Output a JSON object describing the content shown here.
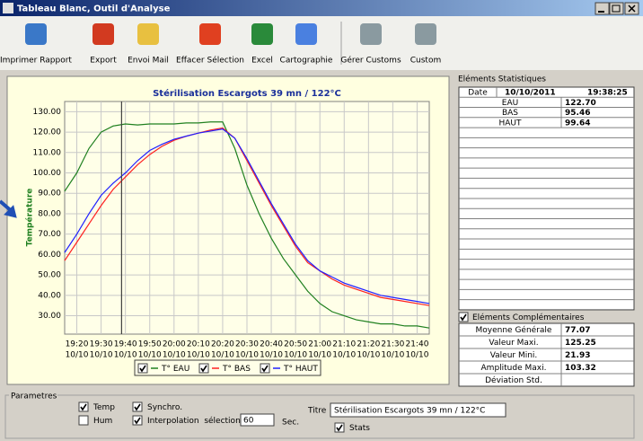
{
  "window": {
    "title": "Tableau Blanc, Outil d'Analyse"
  },
  "toolbar": [
    "Imprimer Rapport",
    "Export",
    "Envoi Mail",
    "Effacer Sélection",
    "Excel",
    "Cartographie",
    "Gérer Customs",
    "Custom"
  ],
  "chart_data": {
    "type": "line",
    "title": "Stérilisation Escargots 39 mn / 122°C",
    "y_label": "Température",
    "x": [
      "19:15",
      "19:20",
      "19:25",
      "19:30",
      "19:35",
      "19:40",
      "19:45",
      "19:50",
      "19:55",
      "20:00",
      "20:05",
      "20:10",
      "20:15",
      "20:20",
      "20:25",
      "20:30",
      "20:35",
      "20:40",
      "20:45",
      "20:50",
      "20:55",
      "21:00",
      "21:05",
      "21:10",
      "21:15",
      "21:20",
      "21:25",
      "21:30",
      "21:35",
      "21:40",
      "21:45"
    ],
    "xlim": [
      "19:15",
      "21:45"
    ],
    "xticks": [
      "19:20",
      "19:30",
      "19:40",
      "19:50",
      "20:00",
      "20:10",
      "20:20",
      "20:30",
      "20:40",
      "20:50",
      "21:00",
      "21:10",
      "21:20",
      "21:30",
      "21:40"
    ],
    "xtick_sublabel": "10/10",
    "ylim": [
      21,
      135
    ],
    "yticks": [
      {
        "value": 30,
        "label": "30.00"
      },
      {
        "value": 40,
        "label": "40.00"
      },
      {
        "value": 50,
        "label": "50.00"
      },
      {
        "value": 60,
        "label": "60.00"
      },
      {
        "value": 70,
        "label": "70.00"
      },
      {
        "value": 80,
        "label": "80.00"
      },
      {
        "value": 90,
        "label": "90.00"
      },
      {
        "value": 100,
        "label": "100.00"
      },
      {
        "value": 110,
        "label": "110.00"
      },
      {
        "value": 120,
        "label": "120.00"
      },
      {
        "value": 130,
        "label": "130.00"
      }
    ],
    "grid": true,
    "series": [
      {
        "name": "T° EAU",
        "color": "#208020",
        "checked": true,
        "values": [
          91,
          100,
          112,
          120,
          123,
          124,
          123.5,
          124,
          124,
          124,
          124.5,
          124.5,
          125,
          125,
          112,
          94,
          80,
          68,
          58,
          50,
          42,
          36,
          32,
          30,
          28,
          27,
          26,
          26,
          25,
          25,
          24
        ]
      },
      {
        "name": "T° BAS",
        "color": "#ff2020",
        "checked": true,
        "values": [
          57,
          66,
          75,
          84,
          92,
          98,
          104,
          109,
          113,
          116,
          118,
          119.5,
          121,
          122,
          117,
          106,
          95,
          84,
          74,
          64,
          56,
          52,
          48,
          45,
          43,
          41,
          39,
          38,
          37,
          36,
          35
        ]
      },
      {
        "name": "T° HAUT",
        "color": "#2020ff",
        "checked": true,
        "values": [
          61,
          70,
          80,
          89,
          95,
          100,
          106,
          111,
          114,
          116.5,
          118,
          119.5,
          120.5,
          121.5,
          117,
          107,
          96,
          85,
          75,
          65,
          57,
          52,
          49,
          46,
          44,
          42,
          40,
          39,
          38,
          37,
          36
        ]
      }
    ]
  },
  "stats": {
    "title": "Eléments Statistiques",
    "date_label": "Date",
    "date": "10/10/2011",
    "time": "19:38:25",
    "rows": [
      [
        "EAU",
        "122.70"
      ],
      [
        "BAS",
        "95.46"
      ],
      [
        "HAUT",
        "99.64"
      ]
    ],
    "complementary": {
      "label": "Eléments Complémentaires",
      "checked": true,
      "rows": [
        [
          "Moyenne Générale",
          "77.07"
        ],
        [
          "Valeur Maxi.",
          "125.25"
        ],
        [
          "Valeur Mini.",
          "21.93"
        ],
        [
          "Amplitude Maxi.",
          "103.32"
        ],
        [
          "Déviation Std."
        ]
      ]
    }
  },
  "params": {
    "title": "Parametres",
    "options": [
      {
        "label": "Temp",
        "checked": true
      },
      {
        "label": "Hum",
        "checked": false
      },
      {
        "label": "Synchro.",
        "checked": true
      },
      {
        "label": "Interpolation  sélection",
        "checked": true
      }
    ],
    "interval": "60",
    "unit": "Sec.",
    "titre_label": "Titre",
    "titre_value": "Stérilisation Escargots 39 mn / 122°C",
    "stats_label": "Stats",
    "stats_checked": true
  }
}
